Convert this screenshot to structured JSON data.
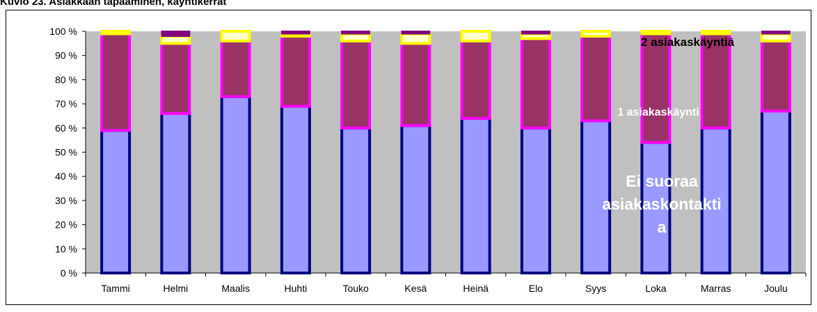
{
  "caption": "Kuvio 23. Asiakkaan tapaaminen, käyntikerrat",
  "colors": {
    "plot_bg": "#c0c0c0",
    "ei_suoraa_fill": "#9999ff",
    "ei_suoraa_stroke": "#000080",
    "yksi_fill": "#993366",
    "yksi_stroke": "#ff00ff",
    "kaksi_fill": "#ffffcc",
    "kaksi_stroke": "#ffff00",
    "top_fill": "#800080",
    "ann_kaksi": "#000000",
    "ann_yksi": "#ffffff",
    "ann_ei": "#ffffff"
  },
  "chart_data": {
    "type": "bar",
    "stacked": true,
    "percent": true,
    "ylim": [
      0,
      100
    ],
    "yticks": [
      "0 %",
      "10 %",
      "20 %",
      "30 %",
      "40 %",
      "50 %",
      "60 %",
      "70 %",
      "80 %",
      "90 %",
      "100 %"
    ],
    "categories": [
      "Tammi",
      "Helmi",
      "Maalis",
      "Huhti",
      "Touko",
      "Kesä",
      "Heinä",
      "Elo",
      "Syys",
      "Loka",
      "Marras",
      "Joulu"
    ],
    "series": [
      {
        "key": "ei",
        "values": [
          59,
          66,
          73,
          69,
          60,
          61,
          64,
          60,
          63,
          54,
          60,
          67
        ]
      },
      {
        "key": "yksi",
        "values": [
          40,
          29,
          23,
          29,
          36,
          34,
          32,
          37,
          35,
          45,
          39,
          29
        ]
      },
      {
        "key": "kaksi",
        "values": [
          1,
          3,
          4,
          1,
          3,
          4,
          4,
          2,
          2,
          1,
          1,
          3
        ]
      },
      {
        "key": "top",
        "values": [
          0,
          2,
          0,
          1,
          1,
          1,
          0,
          1,
          0,
          0,
          0,
          1
        ]
      }
    ],
    "annotations": [
      {
        "key": "kaksi",
        "lines": [
          "2 asiakaskäyntiä"
        ]
      },
      {
        "key": "yksi",
        "lines": [
          "1 asiakaskäynti"
        ]
      },
      {
        "key": "ei",
        "lines": [
          "Ei suoraa",
          "asiakaskontakti",
          "a"
        ]
      }
    ],
    "grid": false,
    "legend": "none"
  }
}
